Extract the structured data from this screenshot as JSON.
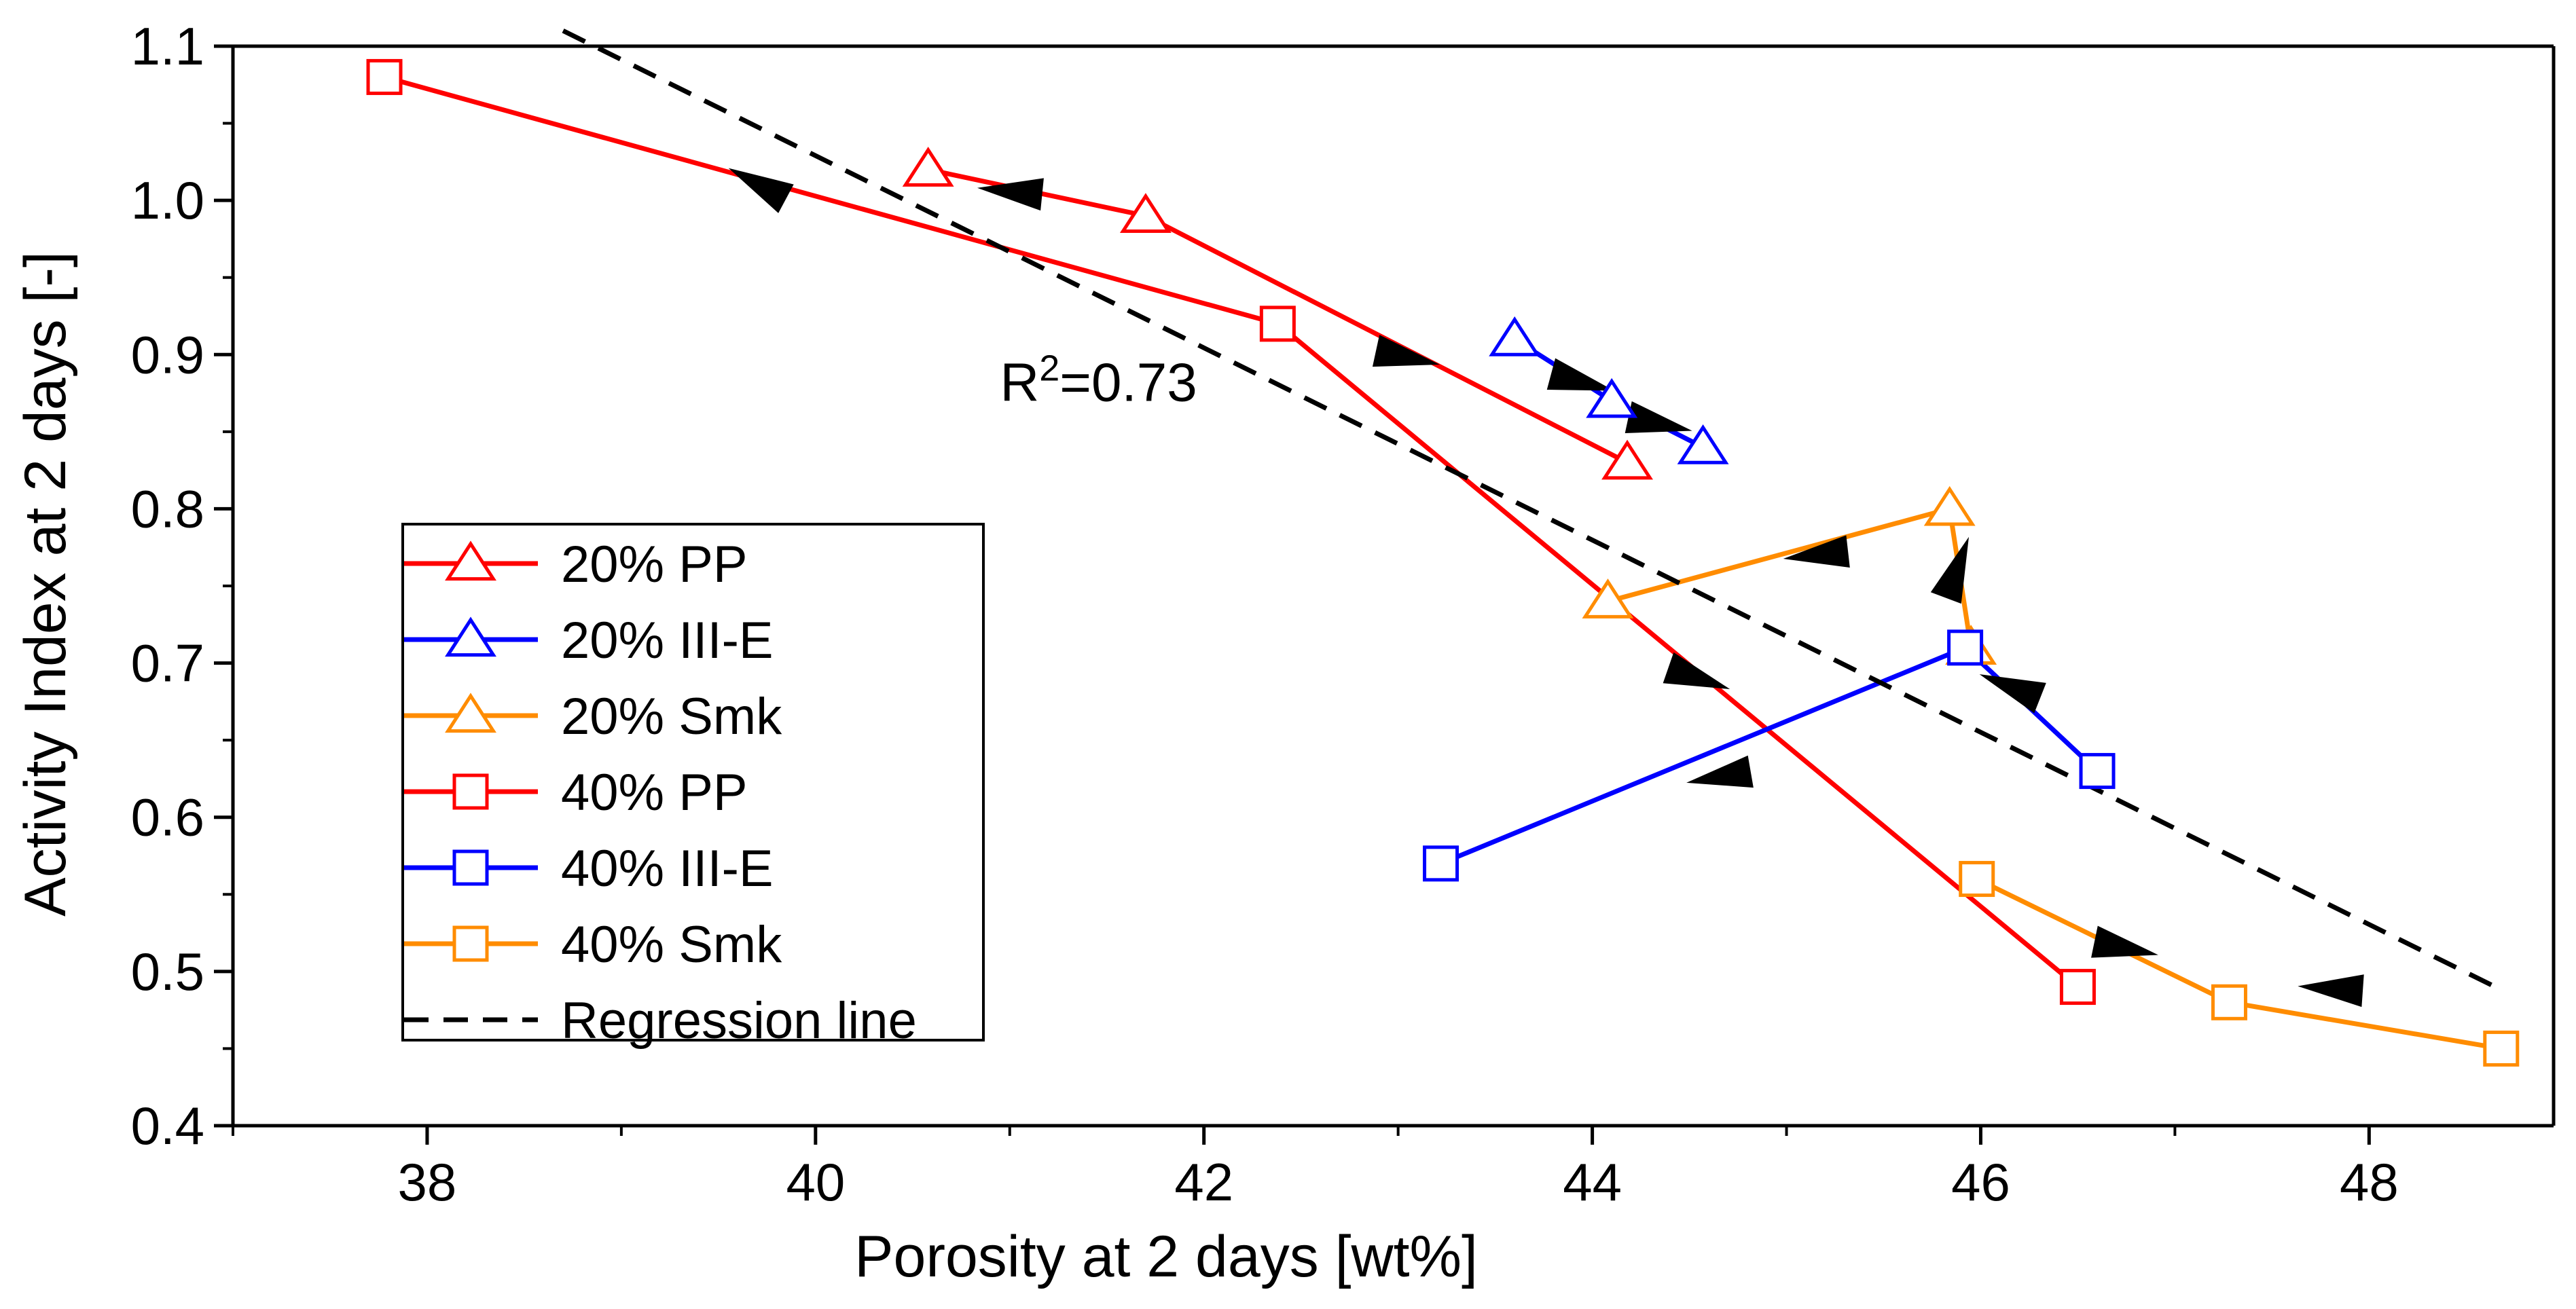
{
  "chart_data": {
    "type": "line",
    "title": "",
    "xlabel": "Porosity at 2 days [wt%]",
    "ylabel": "Activity Index at 2 days [-]",
    "xlim": [
      37.0,
      48.95
    ],
    "ylim": [
      0.4,
      1.1
    ],
    "xticks": [
      38,
      40,
      42,
      44,
      46,
      48
    ],
    "xtick_labels": [
      "38",
      "40",
      "42",
      "44",
      "46",
      "48"
    ],
    "yticks": [
      0.4,
      0.5,
      0.6,
      0.7,
      0.8,
      0.9,
      1.0,
      1.1
    ],
    "ytick_labels": [
      "0.4",
      "0.5",
      "0.6",
      "0.7",
      "0.8",
      "0.9",
      "1.0",
      "1.1"
    ],
    "grid": false,
    "legend_position": "bottom-left",
    "annotation": {
      "text_main": "R",
      "text_sup": "2",
      "text_rest": "=0.73",
      "x": 40.95,
      "y": 0.9
    },
    "series": [
      {
        "name": "20% PP",
        "color": "#ff0000",
        "marker": "triangle",
        "x": [
          40.58,
          41.7,
          44.18
        ],
        "y": [
          1.02,
          0.99,
          0.83
        ]
      },
      {
        "name": "20% III-E",
        "color": "#0000ff",
        "marker": "triangle",
        "x": [
          43.6,
          44.1,
          44.57
        ],
        "y": [
          0.91,
          0.87,
          0.84
        ]
      },
      {
        "name": "20% Smk",
        "color": "#ff8c00",
        "marker": "triangle",
        "x": [
          44.08,
          45.84,
          45.95
        ],
        "y": [
          0.74,
          0.8,
          0.71
        ]
      },
      {
        "name": "40% PP",
        "color": "#ff0000",
        "marker": "square",
        "x": [
          37.78,
          42.38,
          46.5
        ],
        "y": [
          1.08,
          0.92,
          0.49
        ]
      },
      {
        "name": "40% III-E",
        "color": "#0000ff",
        "marker": "square",
        "x": [
          43.22,
          45.92,
          46.6
        ],
        "y": [
          0.57,
          0.71,
          0.63
        ]
      },
      {
        "name": "40% Smk",
        "color": "#ff8c00",
        "marker": "square",
        "x": [
          45.98,
          47.28,
          48.68
        ],
        "y": [
          0.56,
          0.48,
          0.45
        ]
      },
      {
        "name": "Regression line",
        "color": "#000000",
        "style": "dashed",
        "x": [
          38.7,
          48.65
        ],
        "y": [
          1.11,
          0.49
        ]
      }
    ],
    "arrows": [
      {
        "series": "40% PP",
        "x": 39.7,
        "y": 1.011,
        "dx": -1,
        "dy": 0.16
      },
      {
        "series": "20% PP",
        "x": 41.0,
        "y": 1.006,
        "dx": -1,
        "dy": 0.03
      },
      {
        "series": "20% PP",
        "x": 43.05,
        "y": 0.898,
        "dx": 1,
        "dy": -0.065
      },
      {
        "series": "20% III-E",
        "x": 43.95,
        "y": 0.882,
        "dx": 1,
        "dy": -0.08
      },
      {
        "series": "20% III-E",
        "x": 44.35,
        "y": 0.855,
        "dx": 1,
        "dy": -0.064
      },
      {
        "series": "40% PP",
        "x": 44.55,
        "y": 0.69,
        "dx": 1,
        "dy": -0.104
      },
      {
        "series": "20% Smk",
        "x": 45.15,
        "y": 0.77,
        "dx": -1,
        "dy": -0.034
      },
      {
        "series": "20% Smk",
        "x": 45.88,
        "y": 0.762,
        "dx": 0.05,
        "dy": 0.04
      },
      {
        "series": "40% III-E",
        "x": 46.15,
        "y": 0.685,
        "dx": -1,
        "dy": 0.118
      },
      {
        "series": "40% III-E",
        "x": 44.65,
        "y": 0.626,
        "dx": -1,
        "dy": -0.052
      },
      {
        "series": "40% Smk",
        "x": 46.75,
        "y": 0.515,
        "dx": 1,
        "dy": -0.062
      },
      {
        "series": "40% Smk",
        "x": 47.8,
        "y": 0.489,
        "dx": -1,
        "dy": 0.021
      }
    ]
  }
}
